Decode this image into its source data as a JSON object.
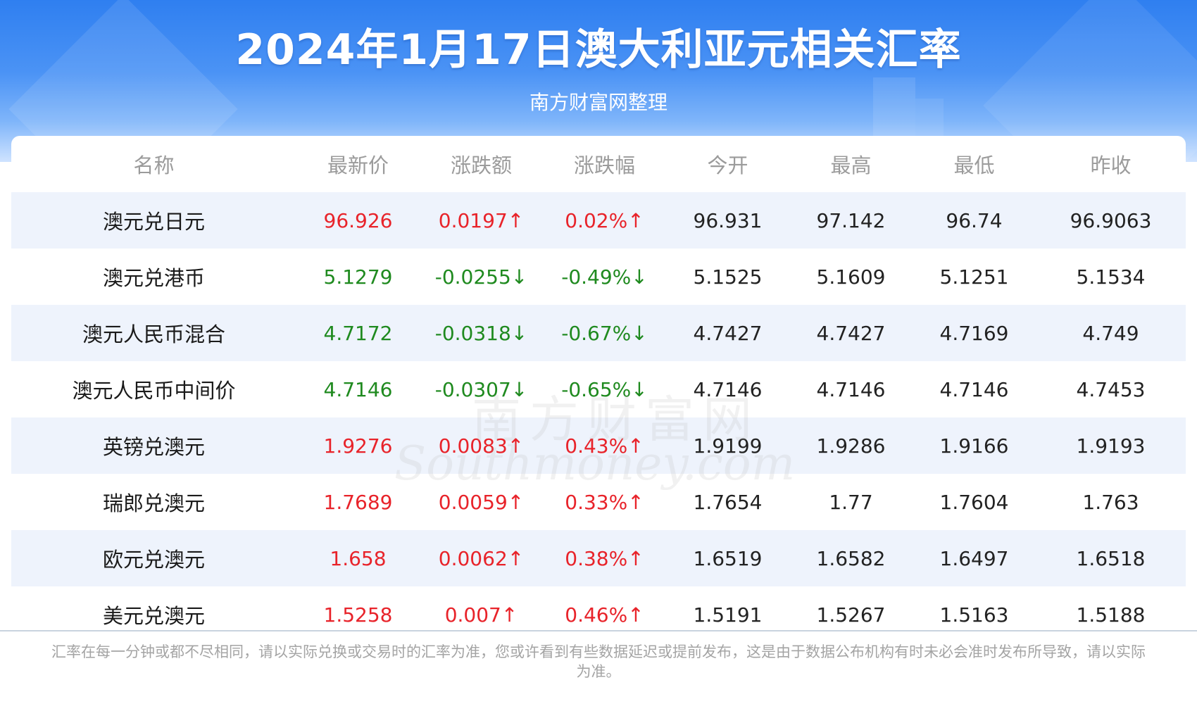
{
  "header": {
    "title": "2024年1月17日澳大利亚元相关汇率",
    "subtitle": "南方财富网整理"
  },
  "table": {
    "columns": [
      "名称",
      "最新价",
      "涨跌额",
      "涨跌幅",
      "今开",
      "最高",
      "最低",
      "昨收"
    ],
    "rows": [
      {
        "name": "澳元兑日元",
        "latest": "96.926",
        "change": "0.0197↑",
        "pct": "0.02%↑",
        "open": "96.931",
        "high": "97.142",
        "low": "96.74",
        "prev": "96.9063",
        "dir": "up"
      },
      {
        "name": "澳元兑港币",
        "latest": "5.1279",
        "change": "-0.0255↓",
        "pct": "-0.49%↓",
        "open": "5.1525",
        "high": "5.1609",
        "low": "5.1251",
        "prev": "5.1534",
        "dir": "down"
      },
      {
        "name": "澳元人民币混合",
        "latest": "4.7172",
        "change": "-0.0318↓",
        "pct": "-0.67%↓",
        "open": "4.7427",
        "high": "4.7427",
        "low": "4.7169",
        "prev": "4.749",
        "dir": "down"
      },
      {
        "name": "澳元人民币中间价",
        "latest": "4.7146",
        "change": "-0.0307↓",
        "pct": "-0.65%↓",
        "open": "4.7146",
        "high": "4.7146",
        "low": "4.7146",
        "prev": "4.7453",
        "dir": "down"
      },
      {
        "name": "英镑兑澳元",
        "latest": "1.9276",
        "change": "0.0083↑",
        "pct": "0.43%↑",
        "open": "1.9199",
        "high": "1.9286",
        "low": "1.9166",
        "prev": "1.9193",
        "dir": "up"
      },
      {
        "name": "瑞郎兑澳元",
        "latest": "1.7689",
        "change": "0.0059↑",
        "pct": "0.33%↑",
        "open": "1.7654",
        "high": "1.77",
        "low": "1.7604",
        "prev": "1.763",
        "dir": "up"
      },
      {
        "name": "欧元兑澳元",
        "latest": "1.658",
        "change": "0.0062↑",
        "pct": "0.38%↑",
        "open": "1.6519",
        "high": "1.6582",
        "low": "1.6497",
        "prev": "1.6518",
        "dir": "up"
      },
      {
        "name": "美元兑澳元",
        "latest": "1.5258",
        "change": "0.007↑",
        "pct": "0.46%↑",
        "open": "1.5191",
        "high": "1.5267",
        "low": "1.5163",
        "prev": "1.5188",
        "dir": "up"
      }
    ]
  },
  "footnote": "汇率在每一分钟或都不尽相同，请以实际兑换或交易时的汇率为准，您或许看到有些数据延迟或提前发布，这是由于数据公布机构有时未必会准时发布所导致，请以实际为准。",
  "watermark": {
    "cn": "南方财富网",
    "en": "Southmoney.com"
  },
  "colors": {
    "up": "#e8232a",
    "down": "#1f8a1f",
    "banner": "#2f7ff0",
    "stripe": "#eef3fc"
  }
}
